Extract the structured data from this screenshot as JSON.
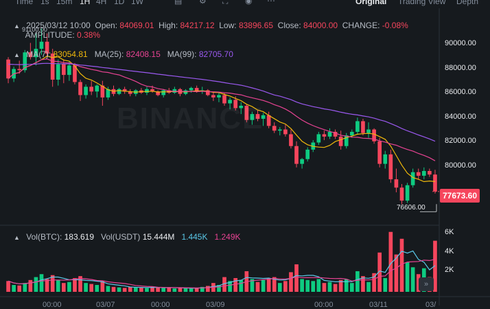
{
  "toolbar": {
    "timeframes": [
      "Time",
      "1s",
      "15m",
      "1H",
      "4H",
      "1D",
      "1W"
    ],
    "active_timeframe": "1H",
    "views": [
      "Original",
      "Trading View",
      "Depth"
    ],
    "active_view": "Original"
  },
  "ohlc": {
    "date": "2025/03/12 10:00",
    "open_label": "Open:",
    "open": "84069.01",
    "high_label": "High:",
    "high": "84217.12",
    "low_label": "Low:",
    "low": "83896.65",
    "close_label": "Close:",
    "close": "84000.00",
    "change_label": "CHANGE:",
    "change": "-0.08%",
    "amplitude_label": "AMPLITUDE:",
    "amplitude": "0.38%",
    "overlap_price": "91100.00"
  },
  "ma": {
    "ma7_label": "MA(7):",
    "ma7": "83054.81",
    "ma25_label": "MA(25):",
    "ma25": "82408.15",
    "ma99_label": "MA(99):",
    "ma99": "82705.70"
  },
  "volume": {
    "btc_label": "Vol(BTC):",
    "btc": "183.619",
    "usdt_label": "Vol(USDT)",
    "usdt": "15.444M",
    "ma5": "1.445K",
    "ma10": "1.249K"
  },
  "price_axis": [
    "90000.00",
    "88000.00",
    "86000.00",
    "84000.00",
    "82000.00",
    "80000.00"
  ],
  "volume_axis": [
    "6K",
    "4K",
    "2K"
  ],
  "current_price": "77673.60",
  "low_marker": "76606.00",
  "watermark": "BINANCE",
  "x_labels": [
    "00:00",
    "03/07",
    "00:00",
    "03/09",
    "00:00",
    "03/11",
    "03/"
  ],
  "colors": {
    "up": "#0ecb81",
    "down": "#f6465d",
    "ma7": "#f0b90b",
    "ma25": "#e84393",
    "ma99": "#9b59f0",
    "vol_ma5": "#5ac8e8",
    "vol_ma10": "#e84393"
  },
  "chart_data": {
    "type": "candlestick",
    "price_ylim": [
      75000,
      91500
    ],
    "volume_ylim": [
      0,
      6500
    ],
    "candles": [
      [
        88800,
        89000,
        86800,
        87200
      ],
      [
        87200,
        88200,
        86900,
        88000
      ],
      [
        88000,
        88700,
        87600,
        87900
      ],
      [
        87900,
        89600,
        87700,
        89400
      ],
      [
        89400,
        90200,
        88800,
        89000
      ],
      [
        89000,
        91000,
        88300,
        89700
      ],
      [
        89700,
        91400,
        89200,
        90300
      ],
      [
        90300,
        91000,
        89000,
        89300
      ],
      [
        89300,
        89700,
        86500,
        87100
      ],
      [
        87100,
        88800,
        86600,
        88400
      ],
      [
        88400,
        88800,
        86800,
        87500
      ],
      [
        87500,
        88600,
        87000,
        88300
      ],
      [
        88300,
        88500,
        86700,
        86900
      ],
      [
        86900,
        87100,
        85300,
        85800
      ],
      [
        85800,
        86700,
        85500,
        86500
      ],
      [
        86500,
        87000,
        85800,
        86100
      ],
      [
        86100,
        86700,
        85600,
        86600
      ],
      [
        86600,
        87000,
        84900,
        85600
      ],
      [
        85600,
        86500,
        85400,
        86300
      ],
      [
        86300,
        86600,
        85700,
        85900
      ],
      [
        85900,
        86400,
        85800,
        86300
      ],
      [
        86300,
        86500,
        85900,
        86100
      ],
      [
        86100,
        86300,
        85700,
        85900
      ],
      [
        85900,
        86300,
        85700,
        86200
      ],
      [
        86200,
        86400,
        85900,
        86000
      ],
      [
        86000,
        86500,
        85800,
        86300
      ],
      [
        86300,
        86600,
        86000,
        86100
      ],
      [
        86100,
        86200,
        85700,
        85800
      ],
      [
        85800,
        86300,
        85600,
        86200
      ],
      [
        86200,
        86400,
        85900,
        86000
      ],
      [
        86000,
        86500,
        85900,
        86300
      ],
      [
        86300,
        86400,
        85700,
        85900
      ],
      [
        85900,
        86300,
        85800,
        86200
      ],
      [
        86200,
        86500,
        86000,
        86400
      ],
      [
        86400,
        86600,
        86000,
        86100
      ],
      [
        86100,
        86500,
        85900,
        86200
      ],
      [
        86200,
        86300,
        85700,
        85800
      ],
      [
        85800,
        86000,
        85300,
        85600
      ],
      [
        85600,
        86000,
        85200,
        85800
      ],
      [
        85800,
        86000,
        84900,
        85100
      ],
      [
        85100,
        85600,
        84600,
        85400
      ],
      [
        85400,
        85700,
        84500,
        84700
      ],
      [
        84700,
        85200,
        84200,
        84900
      ],
      [
        84900,
        85000,
        83500,
        83700
      ],
      [
        83700,
        84400,
        83300,
        84200
      ],
      [
        84200,
        84500,
        83600,
        83800
      ],
      [
        83800,
        84300,
        83200,
        84100
      ],
      [
        84100,
        84400,
        83000,
        83200
      ],
      [
        83200,
        83500,
        82600,
        82800
      ],
      [
        82800,
        83100,
        82400,
        82900
      ],
      [
        82900,
        83300,
        82300,
        82500
      ],
      [
        82500,
        82900,
        81300,
        81500
      ],
      [
        81500,
        81900,
        79700,
        80000
      ],
      [
        80000,
        80500,
        79600,
        80400
      ],
      [
        80400,
        81400,
        80200,
        81200
      ],
      [
        81200,
        82000,
        81000,
        81800
      ],
      [
        81800,
        82700,
        81600,
        82500
      ],
      [
        82500,
        82800,
        82000,
        82300
      ],
      [
        82300,
        83000,
        82100,
        82700
      ],
      [
        82700,
        82900,
        82100,
        82300
      ],
      [
        82300,
        82800,
        81200,
        81500
      ],
      [
        81500,
        82600,
        81300,
        82400
      ],
      [
        82400,
        82900,
        82200,
        82700
      ],
      [
        82700,
        83900,
        82500,
        83600
      ],
      [
        83600,
        83800,
        82400,
        82600
      ],
      [
        82600,
        83500,
        82200,
        82900
      ],
      [
        82900,
        83000,
        81700,
        81900
      ],
      [
        81900,
        82200,
        79700,
        80000
      ],
      [
        80000,
        81100,
        79600,
        80800
      ],
      [
        80800,
        81200,
        78400,
        78700
      ],
      [
        78700,
        79600,
        77600,
        78000
      ],
      [
        78000,
        78300,
        76600,
        76900
      ],
      [
        76900,
        78400,
        76700,
        78200
      ],
      [
        78200,
        79600,
        78000,
        79300
      ],
      [
        79300,
        79600,
        78700,
        79000
      ],
      [
        79000,
        79700,
        78700,
        79400
      ],
      [
        79400,
        79600,
        78900,
        79100
      ],
      [
        79100,
        79500,
        77500,
        77670
      ]
    ],
    "volumes": [
      1100,
      700,
      650,
      900,
      1200,
      1500,
      1800,
      1300,
      1700,
      1200,
      900,
      1000,
      1400,
      1600,
      900,
      800,
      700,
      1100,
      600,
      500,
      450,
      400,
      500,
      450,
      420,
      380,
      500,
      450,
      400,
      420,
      350,
      400,
      380,
      350,
      370,
      500,
      600,
      900,
      700,
      1500,
      1100,
      1400,
      1200,
      2100,
      1300,
      1000,
      1200,
      1400,
      1500,
      900,
      1100,
      2000,
      2800,
      1300,
      1200,
      1100,
      1300,
      900,
      1000,
      800,
      1200,
      1300,
      900,
      2100,
      1600,
      1000,
      1900,
      4000,
      1400,
      6100,
      3800,
      5400,
      3000,
      2500,
      1800,
      2400,
      1500,
      5200
    ]
  }
}
